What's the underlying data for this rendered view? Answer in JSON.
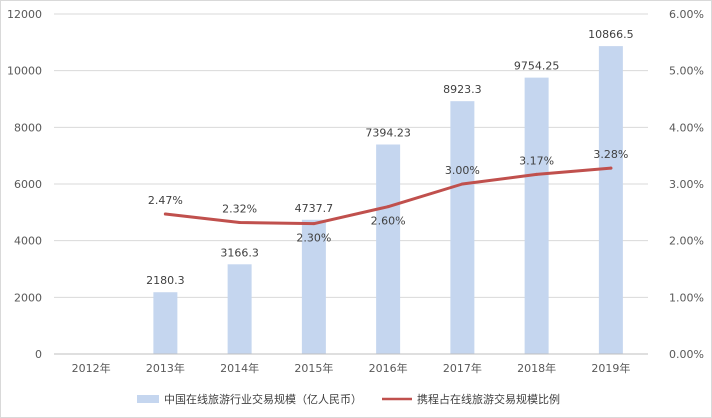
{
  "chart_data": {
    "type": "bar+line",
    "categories": [
      "2012年",
      "2013年",
      "2014年",
      "2015年",
      "2016年",
      "2017年",
      "2018年",
      "2019年"
    ],
    "series": [
      {
        "name": "中国在线旅游行业交易规模（亿人民币）",
        "type": "bar",
        "axis": "left",
        "color": "#c5d6ef",
        "values": [
          null,
          2180.3,
          3166.3,
          4737.7,
          7394.23,
          8923.3,
          9754.25,
          10866.5
        ],
        "labels": [
          "",
          "2180.3",
          "3166.3",
          "4737.7",
          "7394.23",
          "8923.3",
          "9754.25",
          "10866.5"
        ]
      },
      {
        "name": "携程占在线旅游交易规模比例",
        "type": "line",
        "axis": "right",
        "color": "#c0504d",
        "values": [
          null,
          2.47,
          2.32,
          2.3,
          2.6,
          3.0,
          3.17,
          3.28
        ],
        "labels": [
          "",
          "2.47%",
          "2.32%",
          "2.30%",
          "2.60%",
          "3.00%",
          "3.17%",
          "3.28%"
        ]
      }
    ],
    "y_left": {
      "range": [
        0,
        12000
      ],
      "ticks": [
        0,
        2000,
        4000,
        6000,
        8000,
        10000,
        12000
      ],
      "tick_labels": [
        "0",
        "2000",
        "4000",
        "6000",
        "8000",
        "10000",
        "12000"
      ]
    },
    "y_right": {
      "range": [
        0,
        6
      ],
      "ticks": [
        0,
        1,
        2,
        3,
        4,
        5,
        6
      ],
      "tick_labels": [
        "0.00%",
        "1.00%",
        "2.00%",
        "3.00%",
        "4.00%",
        "5.00%",
        "6.00%"
      ]
    },
    "grid": true,
    "legend_position": "bottom",
    "title": "",
    "xlabel": "",
    "ylabel": ""
  }
}
